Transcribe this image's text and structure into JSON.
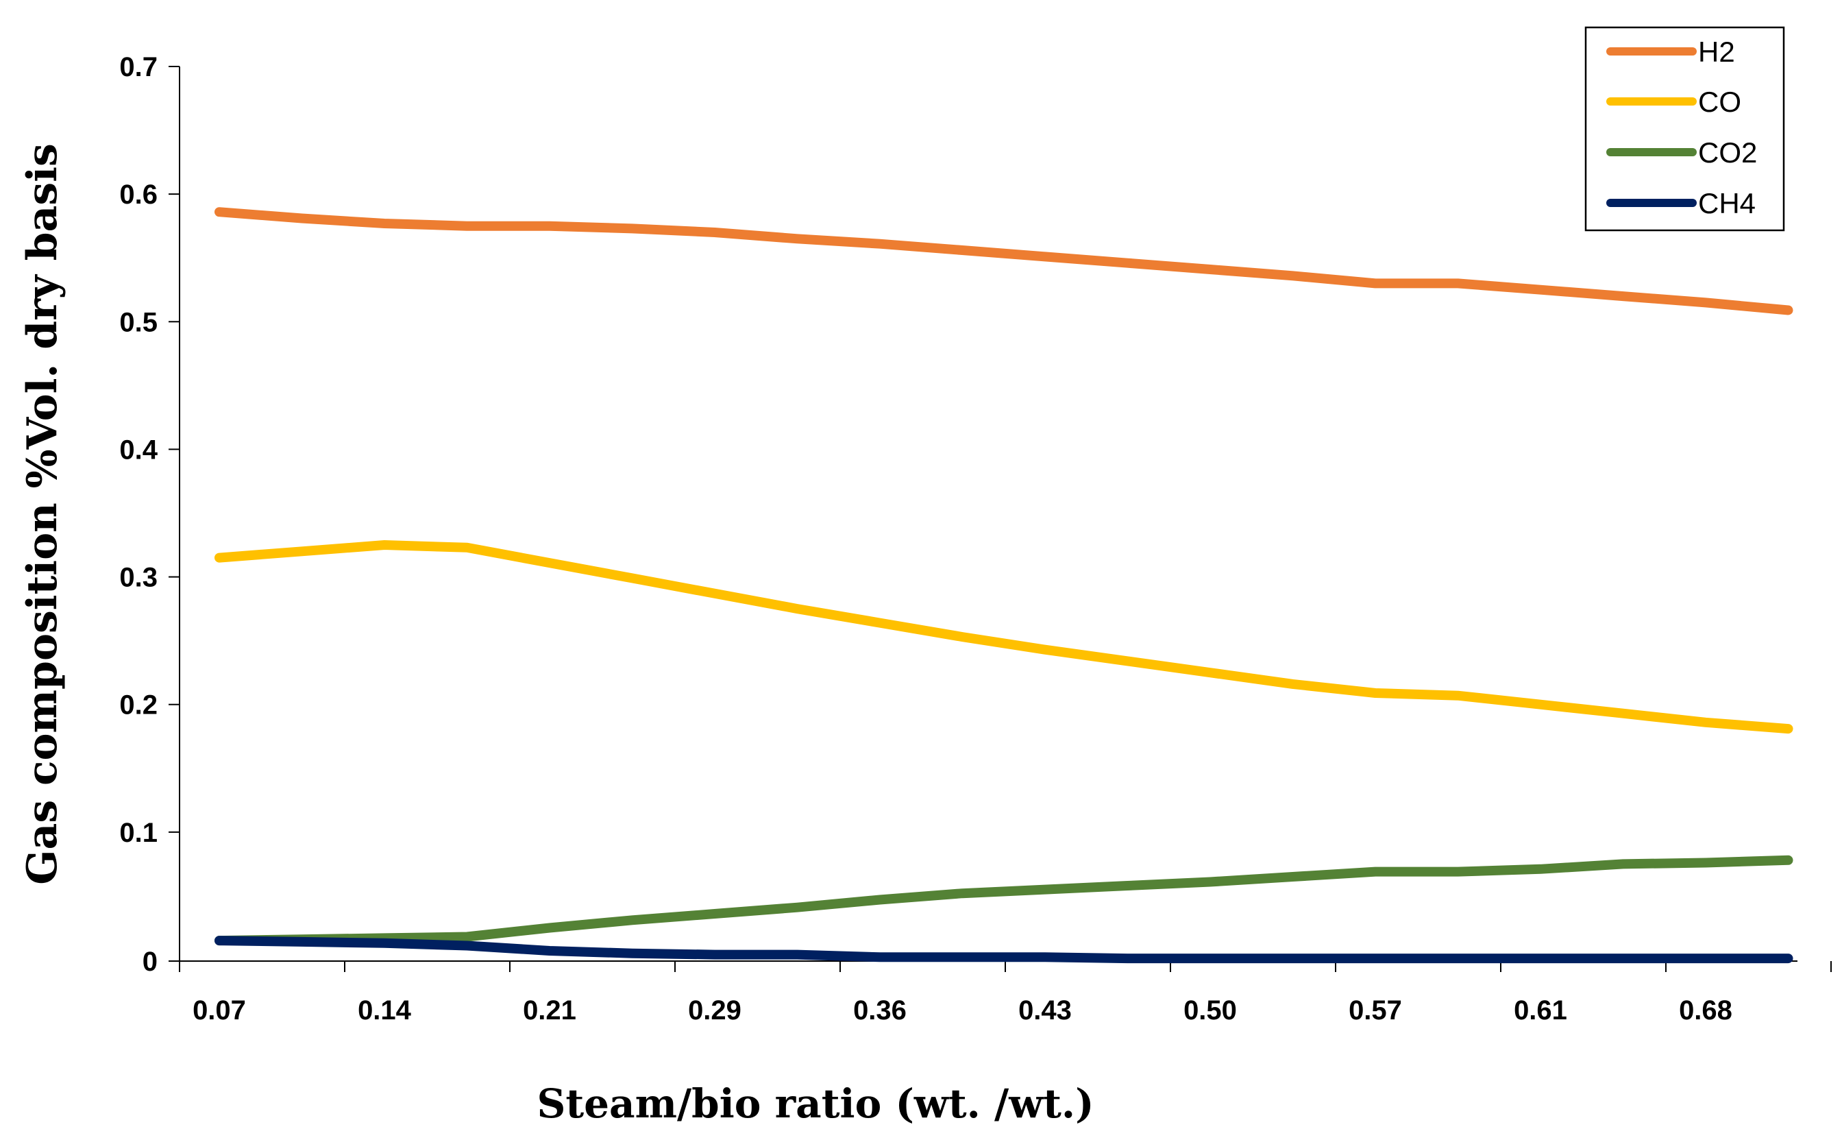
{
  "chart_data": {
    "type": "line",
    "title": "",
    "xlabel": "Steam/bio ratio (wt. /wt.)",
    "ylabel": "Gas composition %Vol. dry basis",
    "x_tick_labels": [
      "0.07",
      "0.14",
      "0.21",
      "0.29",
      "0.36",
      "0.43",
      "0.50",
      "0.57",
      "0.61",
      "0.68"
    ],
    "y_tick_labels": [
      "0",
      "0.1",
      "0.2",
      "0.3",
      "0.4",
      "0.5",
      "0.6",
      "0.7"
    ],
    "ylim": [
      0,
      0.7
    ],
    "xlim": [
      0,
      9.5
    ],
    "legend_position": "top-right",
    "grid": false,
    "series": [
      {
        "name": "H2",
        "color": "#ED7D31",
        "x": [
          0,
          0.5,
          1,
          1.5,
          2,
          2.5,
          3,
          3.5,
          4,
          4.5,
          5,
          5.5,
          6,
          6.5,
          7,
          7.5,
          8,
          8.5,
          9,
          9.5
        ],
        "y": [
          0.586,
          0.581,
          0.577,
          0.575,
          0.575,
          0.573,
          0.57,
          0.565,
          0.561,
          0.556,
          0.551,
          0.546,
          0.541,
          0.536,
          0.53,
          0.53,
          0.525,
          0.52,
          0.515,
          0.509
        ]
      },
      {
        "name": "CO",
        "color": "#FFC000",
        "x": [
          0,
          0.5,
          1,
          1.5,
          2,
          2.5,
          3,
          3.5,
          4,
          4.5,
          5,
          5.5,
          6,
          6.5,
          7,
          7.5,
          8,
          8.5,
          9,
          9.5
        ],
        "y": [
          0.315,
          0.32,
          0.325,
          0.323,
          0.311,
          0.299,
          0.287,
          0.275,
          0.264,
          0.253,
          0.243,
          0.234,
          0.225,
          0.216,
          0.209,
          0.207,
          0.2,
          0.193,
          0.186,
          0.181
        ]
      },
      {
        "name": "CO2",
        "color": "#548235",
        "x": [
          0,
          0.5,
          1,
          1.5,
          2,
          2.5,
          3,
          3.5,
          4,
          4.5,
          5,
          5.5,
          6,
          6.5,
          7,
          7.5,
          8,
          8.5,
          9,
          9.5
        ],
        "y": [
          0.015,
          0.016,
          0.017,
          0.018,
          0.025,
          0.031,
          0.036,
          0.041,
          0.047,
          0.052,
          0.055,
          0.058,
          0.061,
          0.065,
          0.069,
          0.069,
          0.071,
          0.075,
          0.076,
          0.078
        ]
      },
      {
        "name": "CH4",
        "color": "#002060",
        "x": [
          0,
          0.5,
          1,
          1.5,
          2,
          2.5,
          3,
          3.5,
          4,
          4.5,
          5,
          5.5,
          6,
          6.5,
          7,
          7.5,
          8,
          8.5,
          9,
          9.5
        ],
        "y": [
          0.015,
          0.014,
          0.013,
          0.011,
          0.007,
          0.005,
          0.004,
          0.004,
          0.002,
          0.002,
          0.002,
          0.001,
          0.001,
          0.001,
          0.001,
          0.001,
          0.001,
          0.001,
          0.001,
          0.001
        ]
      }
    ]
  }
}
